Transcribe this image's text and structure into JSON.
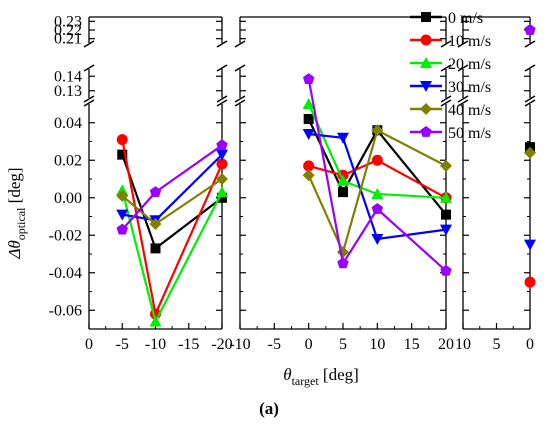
{
  "caption": "(a)",
  "chart_data": {
    "type": "line",
    "xlabel": "θ",
    "xlabel_sub": "target",
    "xlabel_unit": " [deg]",
    "ylabel": "Δθ",
    "ylabel_sub": "optical",
    "ylabel_unit": " [deg]",
    "legend_placement": "top-right",
    "grid": false,
    "y_lower": {
      "range": [
        -0.07,
        0.05
      ],
      "ticks": [
        -0.06,
        -0.04,
        -0.02,
        0.0,
        0.02,
        0.04
      ],
      "tick_labels": [
        "-0.06",
        "-0.04",
        "-0.02",
        "0.00",
        "0.02",
        "0.04"
      ]
    },
    "y_upper": [
      {
        "range": [
          0.125,
          0.145
        ],
        "ticks": [
          0.13,
          0.14
        ],
        "tick_labels": [
          "0.13",
          "0.14"
        ]
      },
      {
        "range": [
          0.205,
          0.235
        ],
        "ticks": [
          0.21,
          0.22,
          0.23
        ],
        "tick_labels": [
          "0.21",
          "0.22",
          "0.23"
        ]
      }
    ],
    "panels": [
      {
        "x": [
          0,
          -5,
          -10,
          -15,
          -20
        ],
        "tick_labels": [
          "0",
          "-5",
          "-10",
          "-15",
          "-20"
        ],
        "xlim": [
          0,
          -20
        ]
      },
      {
        "x": [
          -10,
          -5,
          0,
          5,
          10,
          15,
          20
        ],
        "tick_labels": [
          "-10",
          "-5",
          "0",
          "5",
          "10",
          "15",
          "20"
        ],
        "xlim": [
          -10,
          20
        ]
      },
      {
        "x": [
          10,
          5,
          0
        ],
        "tick_labels": [
          "10",
          "5",
          "0"
        ],
        "xlim": [
          10,
          0
        ]
      }
    ],
    "series": [
      {
        "name": "0 m/s",
        "color": "#000000",
        "marker": "square",
        "left": [
          [
            -5,
            0.023
          ],
          [
            -10,
            -0.027
          ],
          [
            -20,
            0.0
          ]
        ],
        "middle": [
          [
            0,
            0.042
          ],
          [
            5,
            0.003
          ],
          [
            10,
            0.036
          ],
          [
            20,
            -0.009
          ]
        ],
        "right": [
          [
            0,
            0.027
          ]
        ]
      },
      {
        "name": "10 m/s",
        "color": "#ff0000",
        "marker": "circle",
        "left": [
          [
            -5,
            0.031
          ],
          [
            -10,
            -0.062
          ],
          [
            -20,
            0.018
          ]
        ],
        "middle": [
          [
            0,
            0.017
          ],
          [
            5,
            0.012
          ],
          [
            10,
            0.02
          ],
          [
            20,
            0.0
          ]
        ],
        "right": [
          [
            0,
            -0.045
          ]
        ]
      },
      {
        "name": "20 m/s",
        "color": "#00ee00",
        "marker": "triangle-up",
        "left": [
          [
            -5,
            0.004
          ],
          [
            -10,
            -0.066
          ],
          [
            -20,
            0.003
          ]
        ],
        "middle": [
          [
            0,
            0.05
          ],
          [
            5,
            0.009
          ],
          [
            10,
            0.002
          ],
          [
            20,
            0.0
          ]
        ],
        "right": []
      },
      {
        "name": "30 m/s",
        "color": "#0000ff",
        "marker": "triangle-down",
        "left": [
          [
            -5,
            -0.009
          ],
          [
            -10,
            -0.012
          ],
          [
            -20,
            0.023
          ]
        ],
        "middle": [
          [
            0,
            0.034
          ],
          [
            5,
            0.032
          ],
          [
            10,
            -0.022
          ],
          [
            20,
            -0.017
          ]
        ],
        "right": [
          [
            0,
            -0.025
          ]
        ]
      },
      {
        "name": "40 m/s",
        "color": "#808000",
        "marker": "diamond",
        "left": [
          [
            -5,
            0.001
          ],
          [
            -10,
            -0.014
          ],
          [
            -20,
            0.01
          ]
        ],
        "middle": [
          [
            0,
            0.012
          ],
          [
            5,
            -0.029
          ],
          [
            10,
            0.036
          ],
          [
            20,
            0.017
          ]
        ],
        "right": [
          [
            0,
            0.024
          ]
        ]
      },
      {
        "name": "50 m/s",
        "color": "#9900ff",
        "marker": "pentagon",
        "left": [
          [
            -5,
            -0.017
          ],
          [
            -10,
            0.003
          ],
          [
            -20,
            0.028
          ]
        ],
        "middle": [
          [
            0,
            0.138
          ],
          [
            5,
            -0.035
          ],
          [
            10,
            -0.006
          ],
          [
            20,
            -0.039
          ]
        ],
        "right": [
          [
            0,
            0.22
          ]
        ]
      }
    ]
  }
}
